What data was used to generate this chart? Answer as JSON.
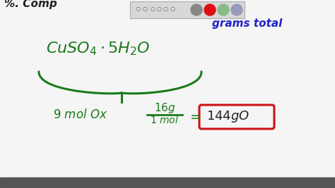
{
  "bg_color": "#f5f5f5",
  "green_color": "#1a7a1a",
  "blue_color": "#2222cc",
  "red_color": "#cc1111",
  "black_color": "#222222",
  "toolbar_bg": "#e0e0e0",
  "dot_colors": [
    "#888888",
    "#dd1111",
    "#88bb88",
    "#9999bb"
  ],
  "figsize": [
    4.74,
    2.67
  ],
  "dpi": 100
}
